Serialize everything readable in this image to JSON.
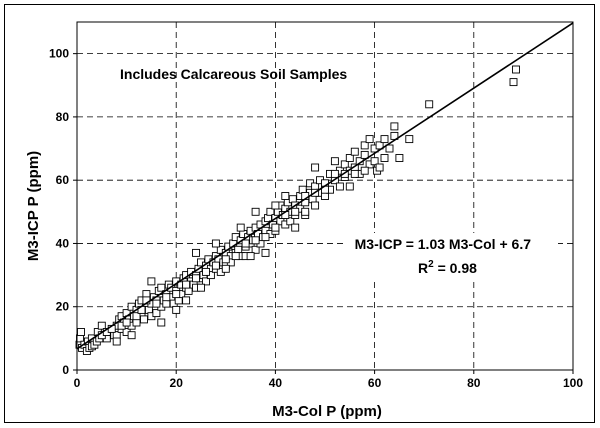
{
  "chart_data": {
    "type": "scatter",
    "title": "",
    "xlabel": "M3-Col P (ppm)",
    "ylabel": "M3-ICP P (ppm)",
    "xlim": [
      0,
      100
    ],
    "ylim": [
      0,
      110
    ],
    "x_ticks": [
      "0",
      "20",
      "40",
      "60",
      "80",
      "100"
    ],
    "y_ticks": [
      "0",
      "20",
      "40",
      "60",
      "80",
      "100"
    ],
    "grid": true,
    "annotation": "Includes Calcareous Soil Samples",
    "equation_main": "M3-ICP = 1.03 M3-Col + 6.7",
    "r2_prefix": "R",
    "r2_sup": "2",
    "r2_suffix": " = 0.98",
    "fit": {
      "slope": 1.03,
      "intercept": 6.7
    },
    "marker": "open-square",
    "points": [
      [
        0.5,
        8
      ],
      [
        0.6,
        10
      ],
      [
        0.8,
        12
      ],
      [
        1,
        7
      ],
      [
        1.5,
        8
      ],
      [
        2,
        6
      ],
      [
        2.2,
        9
      ],
      [
        2.5,
        7
      ],
      [
        3,
        7.5
      ],
      [
        3,
        10
      ],
      [
        3.5,
        8
      ],
      [
        4,
        9
      ],
      [
        4.2,
        12
      ],
      [
        4.5,
        10
      ],
      [
        5,
        14
      ],
      [
        5.5,
        11
      ],
      [
        6,
        10
      ],
      [
        7,
        12
      ],
      [
        7.5,
        11
      ],
      [
        8,
        14
      ],
      [
        8,
        11
      ],
      [
        8.5,
        16
      ],
      [
        9,
        17
      ],
      [
        9,
        13
      ],
      [
        9.5,
        15
      ],
      [
        10,
        18
      ],
      [
        10,
        12
      ],
      [
        10.5,
        16
      ],
      [
        11,
        20
      ],
      [
        11,
        14
      ],
      [
        11.5,
        17
      ],
      [
        12,
        19
      ],
      [
        12,
        15
      ],
      [
        12.5,
        21
      ],
      [
        13,
        18
      ],
      [
        13,
        22
      ],
      [
        13.5,
        16
      ],
      [
        14,
        20
      ],
      [
        14,
        24
      ],
      [
        14.5,
        19
      ],
      [
        15,
        21
      ],
      [
        15,
        17
      ],
      [
        15.5,
        23
      ],
      [
        16,
        22
      ],
      [
        16,
        18
      ],
      [
        16.5,
        25
      ],
      [
        17,
        20
      ],
      [
        17,
        26
      ],
      [
        17.5,
        22
      ],
      [
        18,
        24
      ],
      [
        18,
        21
      ],
      [
        18.5,
        27
      ],
      [
        19,
        23
      ],
      [
        19,
        26
      ],
      [
        19.5,
        21
      ],
      [
        20,
        25
      ],
      [
        20,
        28
      ],
      [
        20.5,
        22
      ],
      [
        21,
        27
      ],
      [
        21,
        24
      ],
      [
        21.5,
        29
      ],
      [
        22,
        26
      ],
      [
        22,
        30
      ],
      [
        22.5,
        25
      ],
      [
        23,
        28
      ],
      [
        23,
        31
      ],
      [
        23.5,
        27
      ],
      [
        24,
        30
      ],
      [
        24,
        26
      ],
      [
        24.5,
        32
      ],
      [
        25,
        29
      ],
      [
        25,
        34
      ],
      [
        25.5,
        30
      ],
      [
        26,
        33
      ],
      [
        26,
        28
      ],
      [
        26.5,
        35
      ],
      [
        27,
        32
      ],
      [
        27,
        30
      ],
      [
        27.5,
        34
      ],
      [
        28,
        36
      ],
      [
        28,
        32
      ],
      [
        28.5,
        35
      ],
      [
        29,
        31
      ],
      [
        29,
        38
      ],
      [
        29.5,
        34
      ],
      [
        30,
        37
      ],
      [
        30,
        33
      ],
      [
        30.5,
        39
      ],
      [
        31,
        36
      ],
      [
        31,
        34
      ],
      [
        31.5,
        40
      ],
      [
        32,
        37
      ],
      [
        32,
        42
      ],
      [
        32.5,
        38
      ],
      [
        33,
        36
      ],
      [
        33,
        41
      ],
      [
        33.5,
        43
      ],
      [
        34,
        39
      ],
      [
        34,
        36
      ],
      [
        34.5,
        42
      ],
      [
        35,
        40
      ],
      [
        35,
        44
      ],
      [
        35.5,
        41
      ],
      [
        36,
        38
      ],
      [
        36,
        45
      ],
      [
        36.5,
        43
      ],
      [
        37,
        40
      ],
      [
        37,
        46
      ],
      [
        37.5,
        42
      ],
      [
        38,
        47
      ],
      [
        38,
        44
      ],
      [
        38.5,
        48
      ],
      [
        39,
        43
      ],
      [
        39,
        50
      ],
      [
        39.5,
        46
      ],
      [
        40,
        48
      ],
      [
        40,
        44
      ],
      [
        40.5,
        50
      ],
      [
        41,
        47
      ],
      [
        41,
        52
      ],
      [
        41.5,
        49
      ],
      [
        42,
        51
      ],
      [
        42,
        46
      ],
      [
        42.5,
        53
      ],
      [
        43,
        50
      ],
      [
        43,
        47
      ],
      [
        43.5,
        54
      ],
      [
        44,
        52
      ],
      [
        44,
        49
      ],
      [
        45,
        55
      ],
      [
        45,
        51
      ],
      [
        45.5,
        57
      ],
      [
        46,
        53
      ],
      [
        46,
        49
      ],
      [
        47,
        56
      ],
      [
        47,
        59
      ],
      [
        47.5,
        54
      ],
      [
        48,
        58
      ],
      [
        48,
        52
      ],
      [
        49,
        60
      ],
      [
        49,
        56
      ],
      [
        50,
        59
      ],
      [
        50,
        55
      ],
      [
        51,
        62
      ],
      [
        51,
        57
      ],
      [
        52,
        60
      ],
      [
        52,
        66
      ],
      [
        53,
        63
      ],
      [
        53,
        58
      ],
      [
        54,
        65
      ],
      [
        54,
        61
      ],
      [
        55,
        67
      ],
      [
        55,
        63
      ],
      [
        56,
        64
      ],
      [
        56,
        69
      ],
      [
        57,
        66
      ],
      [
        57,
        62
      ],
      [
        58,
        68
      ],
      [
        58,
        71
      ],
      [
        59,
        65
      ],
      [
        59,
        73
      ],
      [
        60,
        70
      ],
      [
        60,
        66
      ],
      [
        60.5,
        63
      ],
      [
        61,
        71
      ],
      [
        61,
        64
      ],
      [
        62,
        73
      ],
      [
        62,
        67
      ],
      [
        63,
        70
      ],
      [
        64,
        77
      ],
      [
        64,
        74
      ],
      [
        65,
        67
      ],
      [
        67,
        73
      ],
      [
        71,
        84
      ],
      [
        88,
        91
      ],
      [
        88.5,
        95
      ],
      [
        5,
        11
      ],
      [
        6,
        12
      ],
      [
        7,
        13
      ],
      [
        9,
        14
      ],
      [
        10,
        15
      ],
      [
        12,
        17
      ],
      [
        13,
        19
      ],
      [
        14,
        22
      ],
      [
        16,
        21
      ],
      [
        18,
        23
      ],
      [
        20,
        24
      ],
      [
        22,
        27
      ],
      [
        24,
        29
      ],
      [
        26,
        31
      ],
      [
        28,
        33
      ],
      [
        30,
        35
      ],
      [
        32,
        36
      ],
      [
        34,
        40
      ],
      [
        36,
        41
      ],
      [
        38,
        42
      ],
      [
        40,
        45
      ],
      [
        42,
        49
      ],
      [
        44,
        50
      ],
      [
        46,
        55
      ],
      [
        48,
        56
      ],
      [
        50,
        57
      ],
      [
        52,
        62
      ],
      [
        54,
        62
      ],
      [
        56,
        62
      ],
      [
        58,
        63
      ],
      [
        15,
        28
      ],
      [
        24,
        37
      ],
      [
        30,
        32
      ],
      [
        35,
        36
      ],
      [
        33,
        45
      ],
      [
        40,
        52
      ],
      [
        44,
        45
      ],
      [
        36,
        50
      ],
      [
        48,
        64
      ],
      [
        55,
        58
      ],
      [
        20,
        19
      ],
      [
        25,
        26
      ],
      [
        38,
        37
      ],
      [
        42,
        55
      ],
      [
        46,
        50
      ],
      [
        28,
        40
      ],
      [
        22,
        22
      ],
      [
        17,
        15
      ],
      [
        11,
        11
      ],
      [
        8,
        9
      ]
    ]
  }
}
